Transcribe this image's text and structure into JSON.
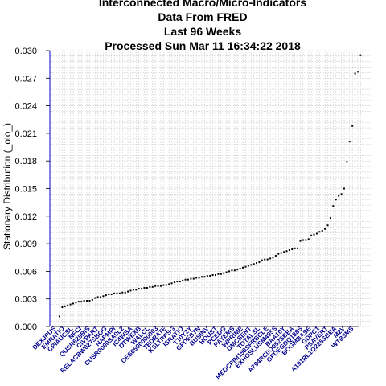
{
  "chart_data": {
    "type": "scatter",
    "title_lines": [
      "Interconnected Macro/Micro-Indicators",
      "Data From FRED",
      "Last  96  Weeks",
      "Processed  Sun Mar 11 16:34:22 2018"
    ],
    "xlabel": "",
    "ylabel": "Stationary Distribution (_olo_)",
    "ylim": [
      0,
      0.03
    ],
    "yticks": [
      "0.000",
      "0.003",
      "0.006",
      "0.009",
      "0.012",
      "0.015",
      "0.018",
      "0.021",
      "0.024",
      "0.027",
      "0.030"
    ],
    "grid": true,
    "categories": [
      "DEXJPUS",
      "EMRATIO",
      "CPIAUCSL",
      "NFCI",
      "QUSR628BIS",
      "CIVPART",
      "RELACBW027SBOG",
      "NAPMPI",
      "CUSR0000SA0L2",
      "IC4WSA",
      "DTWEXB",
      "WALCL",
      "CES0500000003",
      "TEDRATE",
      "KSLTRPSG",
      "ISRATIO",
      "T10Y2Y",
      "GFDEBTN",
      "BUSINV",
      "HOUST",
      "PCEDG",
      "PAYEMS",
      "WPRIME",
      "UMCSENT",
      "TOTALSL",
      "MEDCPIM158SFRBCLE",
      "EXHOSLUSM495S",
      "BAA10Y",
      "A794RC0Q052SBEA",
      "GFDEGDQ188S",
      "BOGMBASE",
      "GDPC1",
      "PSAVERT",
      "A191RL1Q225SBEA",
      "M2V",
      "WTB3MS"
    ],
    "values": [
      0.0011,
      0.0021,
      0.0022,
      0.0023,
      0.0024,
      0.0025,
      0.0026,
      0.0027,
      0.0027,
      0.0028,
      0.0028,
      0.0028,
      0.0029,
      0.0031,
      0.0032,
      0.0032,
      0.0033,
      0.0034,
      0.0035,
      0.0035,
      0.0036,
      0.0036,
      0.0036,
      0.0037,
      0.0037,
      0.0038,
      0.0039,
      0.004,
      0.004,
      0.0041,
      0.0041,
      0.0042,
      0.0042,
      0.0043,
      0.0043,
      0.0044,
      0.0044,
      0.0044,
      0.0045,
      0.0045,
      0.0046,
      0.0047,
      0.0048,
      0.0049,
      0.0049,
      0.005,
      0.0051,
      0.0051,
      0.0052,
      0.0052,
      0.0053,
      0.0053,
      0.0054,
      0.0054,
      0.0055,
      0.0055,
      0.0056,
      0.0056,
      0.0057,
      0.0057,
      0.0058,
      0.0059,
      0.006,
      0.0061,
      0.0061,
      0.0062,
      0.0063,
      0.0064,
      0.0065,
      0.0066,
      0.0067,
      0.0068,
      0.0069,
      0.007,
      0.0072,
      0.0073,
      0.0073,
      0.0074,
      0.0075,
      0.0077,
      0.0079,
      0.008,
      0.0081,
      0.0082,
      0.0083,
      0.0084,
      0.0085,
      0.0085,
      0.0093,
      0.0094,
      0.0094,
      0.0095,
      0.0099,
      0.01,
      0.0101,
      0.0103,
      0.0104,
      0.0106,
      0.011,
      0.0118,
      0.0131,
      0.0138,
      0.0142,
      0.0144,
      0.015,
      0.0179,
      0.0201,
      0.0218,
      0.0275,
      0.0277,
      0.0295
    ]
  }
}
